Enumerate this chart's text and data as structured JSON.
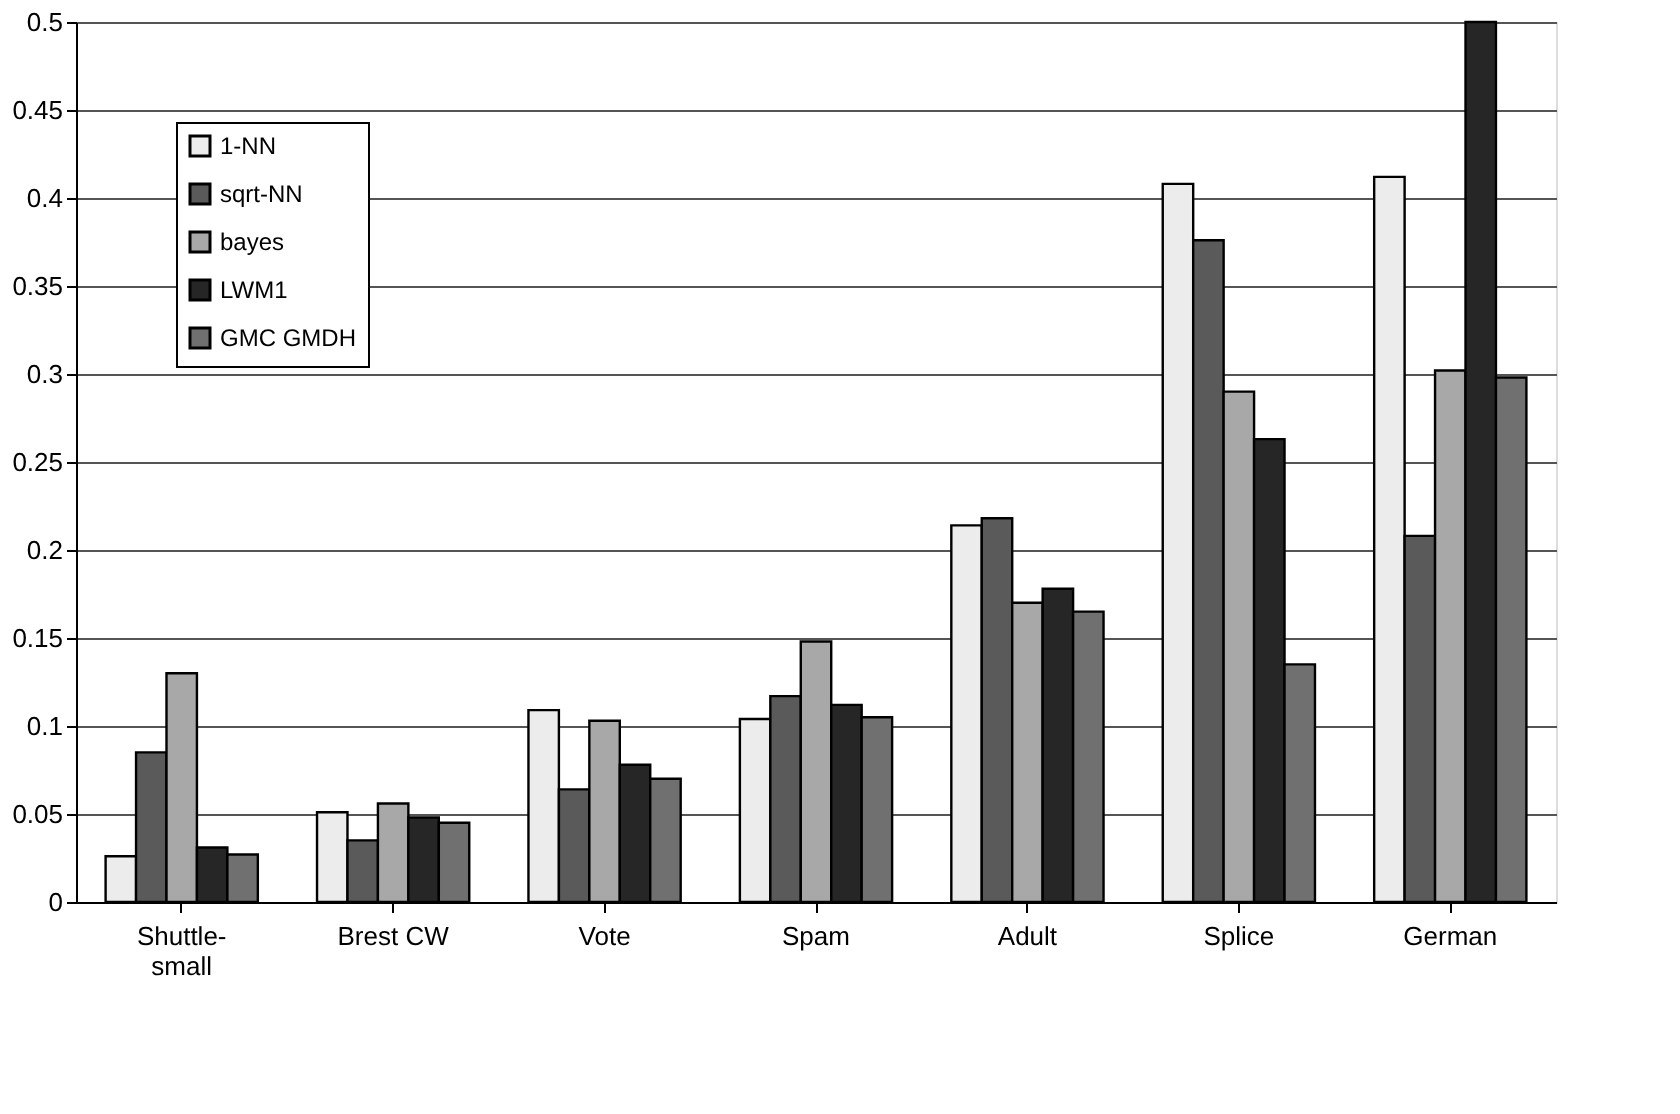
{
  "chart_data": {
    "type": "bar",
    "categories": [
      "Shuttle-small",
      "Brest CW",
      "Vote",
      "Spam",
      "Adult",
      "Splice",
      "German"
    ],
    "series": [
      {
        "name": "1-NN",
        "color": "#ececec",
        "values": [
          0.026,
          0.051,
          0.109,
          0.104,
          0.214,
          0.408,
          0.412
        ]
      },
      {
        "name": "sqrt-NN",
        "color": "#5a5a5a",
        "values": [
          0.085,
          0.035,
          0.064,
          0.117,
          0.218,
          0.376,
          0.208
        ]
      },
      {
        "name": "bayes",
        "color": "#a8a8a8",
        "values": [
          0.13,
          0.056,
          0.103,
          0.148,
          0.17,
          0.29,
          0.302
        ]
      },
      {
        "name": "LWM1",
        "color": "#262626",
        "values": [
          0.031,
          0.048,
          0.078,
          0.112,
          0.178,
          0.263,
          0.5
        ]
      },
      {
        "name": "GMC GMDH",
        "color": "#707070",
        "values": [
          0.027,
          0.045,
          0.07,
          0.105,
          0.165,
          0.135,
          0.298
        ]
      }
    ],
    "ylim": [
      0,
      0.5
    ],
    "yticks": [
      0,
      0.05,
      0.1,
      0.15,
      0.2,
      0.25,
      0.3,
      0.35,
      0.4,
      0.45,
      0.5
    ],
    "grid": "y",
    "legend": "top left"
  }
}
